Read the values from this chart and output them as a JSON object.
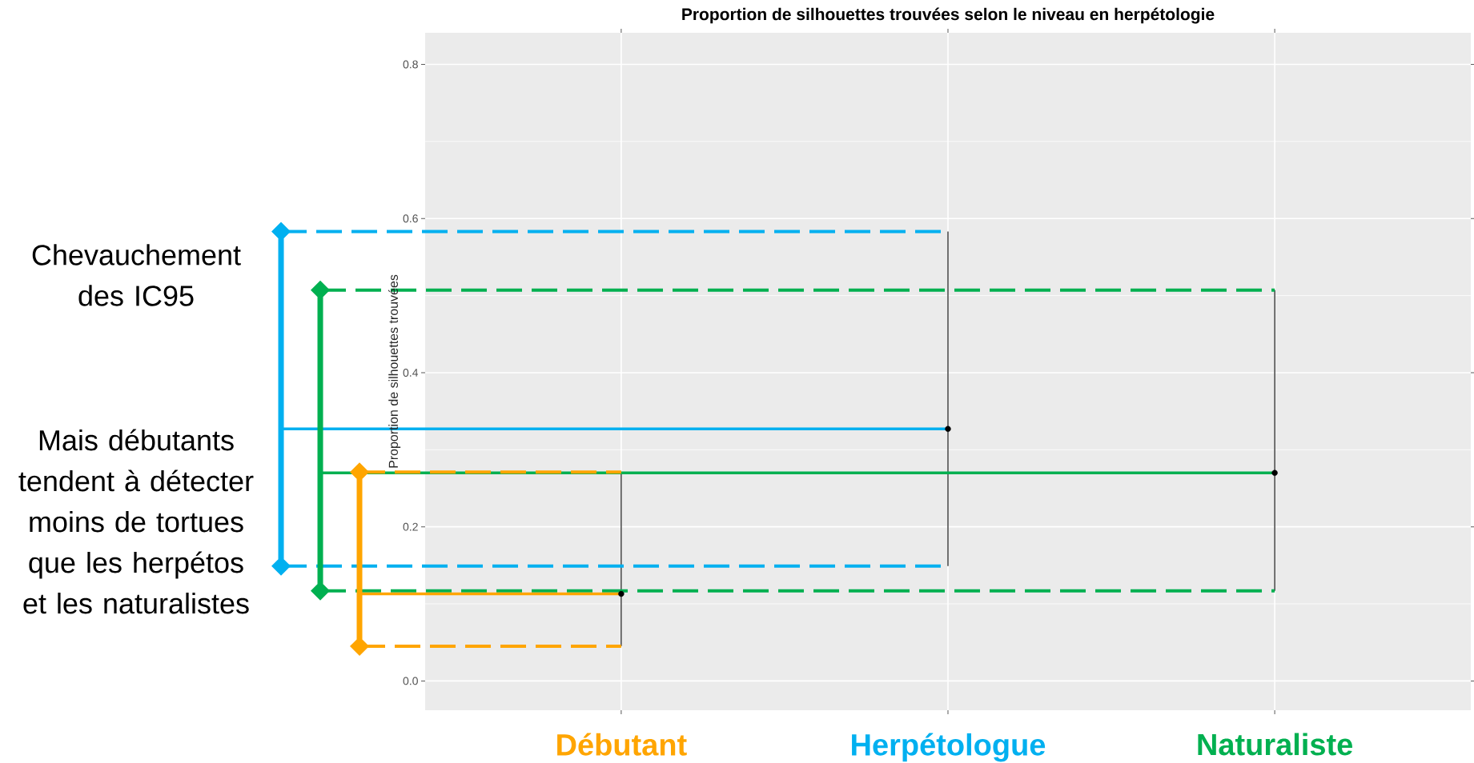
{
  "chart_data": {
    "type": "scatter",
    "title": "Proportion de silhouettes trouvées selon le niveau en herpétologie",
    "ylabel": "Proportion de silhouettes trouvées",
    "categories": [
      "Débutant",
      "Herpétologue",
      "Naturaliste"
    ],
    "values": [
      0.113,
      0.327,
      0.27
    ],
    "errors": [
      [
        0.045,
        0.271
      ],
      [
        0.149,
        0.583
      ],
      [
        0.117,
        0.507
      ]
    ],
    "color": "#000000",
    "marker": "circle",
    "ylim": [
      -0.038,
      0.841
    ],
    "yticks": [
      {
        "value": 0,
        "label": "0.0"
      },
      0.2,
      0.4,
      0.6,
      0.8
    ],
    "grid": true,
    "ref_lines": [
      {
        "axis": "y",
        "value": 0.583,
        "color": "#00b0f0",
        "line_style": "dashed"
      },
      {
        "axis": "y",
        "value": 0.327,
        "color": "#00b0f0",
        "line_style": "solid"
      },
      {
        "axis": "y",
        "value": 0.149,
        "color": "#00b0f0",
        "line_style": "dashed"
      },
      {
        "axis": "y",
        "value": 0.507,
        "color": "#00b050",
        "line_style": "dashed"
      },
      {
        "axis": "y",
        "value": 0.27,
        "color": "#00b050",
        "line_style": "solid"
      },
      {
        "axis": "y",
        "value": 0.117,
        "color": "#00b050",
        "line_style": "dashed"
      },
      {
        "axis": "y",
        "value": 0.271,
        "color": "#ffa500",
        "line_style": "dashed"
      },
      {
        "axis": "y",
        "value": 0.113,
        "color": "#ffa500",
        "line_style": "solid"
      },
      {
        "axis": "y",
        "value": 0.045,
        "color": "#ffa500",
        "line_style": "dashed"
      }
    ],
    "annotations": [
      "Chevauchement des IC95",
      "Mais débutants tendent à détecter moins de tortues que les herpétos et les naturalistes"
    ]
  }
}
